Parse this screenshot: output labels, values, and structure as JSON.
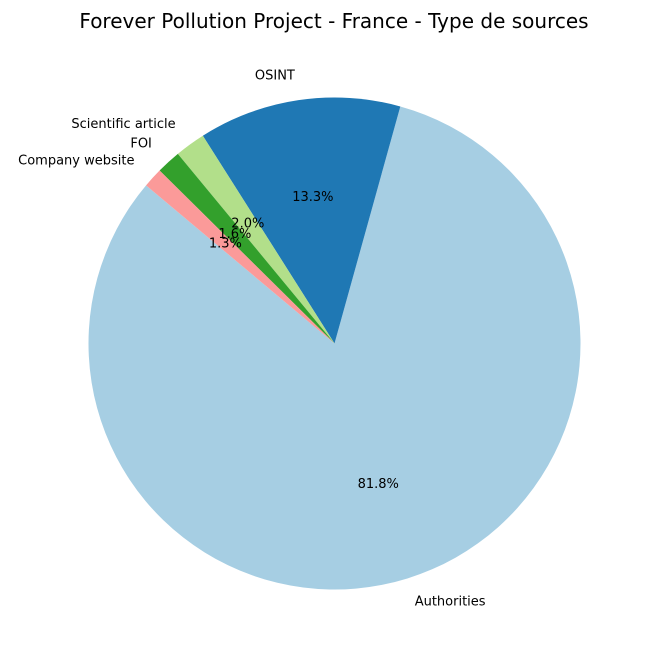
{
  "chart_data": {
    "type": "pie",
    "title": "Forever Pollution Project - France - Type de sources",
    "labels": [
      "Authorities",
      "OSINT",
      "Scientific article",
      "FOI",
      "Company website"
    ],
    "values": [
      81.8,
      13.3,
      2.0,
      1.6,
      1.3
    ],
    "value_labels": [
      "81.8%",
      "13.3%",
      "2.0%",
      "1.6%",
      "1.3%"
    ],
    "colors": [
      "#a6cee3",
      "#1f78b4",
      "#b2df8a",
      "#33a02c",
      "#fb9a99"
    ],
    "start_angle_deg": 140,
    "direction": "counterclockwise",
    "legend": "none"
  }
}
